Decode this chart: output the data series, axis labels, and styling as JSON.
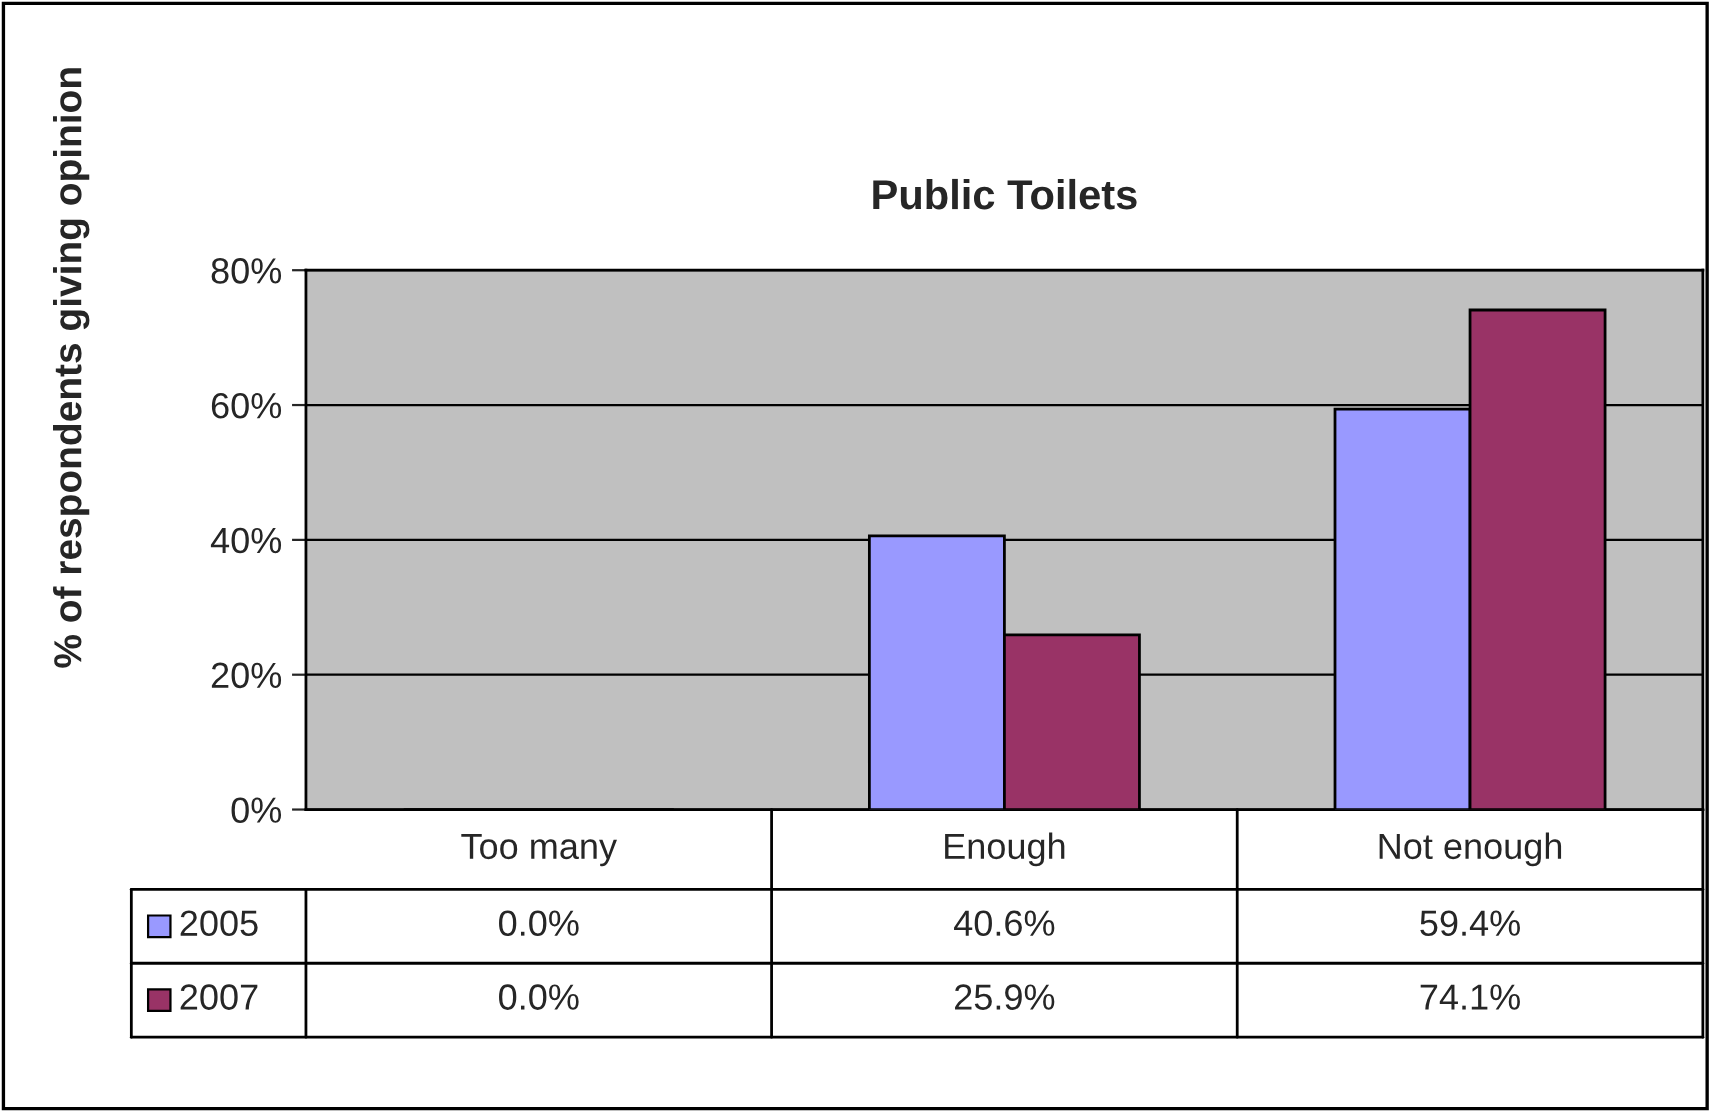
{
  "chart_data": {
    "type": "bar",
    "title": "Public Toilets",
    "ylabel": "% of respondents giving opinion",
    "categories": [
      "Too many",
      "Enough",
      "Not enough"
    ],
    "series": [
      {
        "name": "2005",
        "color": "#9999ff",
        "values": [
          0.0,
          40.6,
          59.4
        ],
        "value_labels": [
          "0.0%",
          "40.6%",
          "59.4%"
        ]
      },
      {
        "name": "2007",
        "color": "#993366",
        "values": [
          0.0,
          25.9,
          74.1
        ],
        "value_labels": [
          "0.0%",
          "25.9%",
          "74.1%"
        ]
      }
    ],
    "ylim": [
      0,
      80
    ],
    "yticks": [
      {
        "value": 0,
        "label": "0%"
      },
      {
        "value": 20,
        "label": "20%"
      },
      {
        "value": 40,
        "label": "40%"
      },
      {
        "value": 60,
        "label": "60%"
      },
      {
        "value": 80,
        "label": "80%"
      }
    ],
    "grid": "y",
    "legend": "bottom left"
  }
}
